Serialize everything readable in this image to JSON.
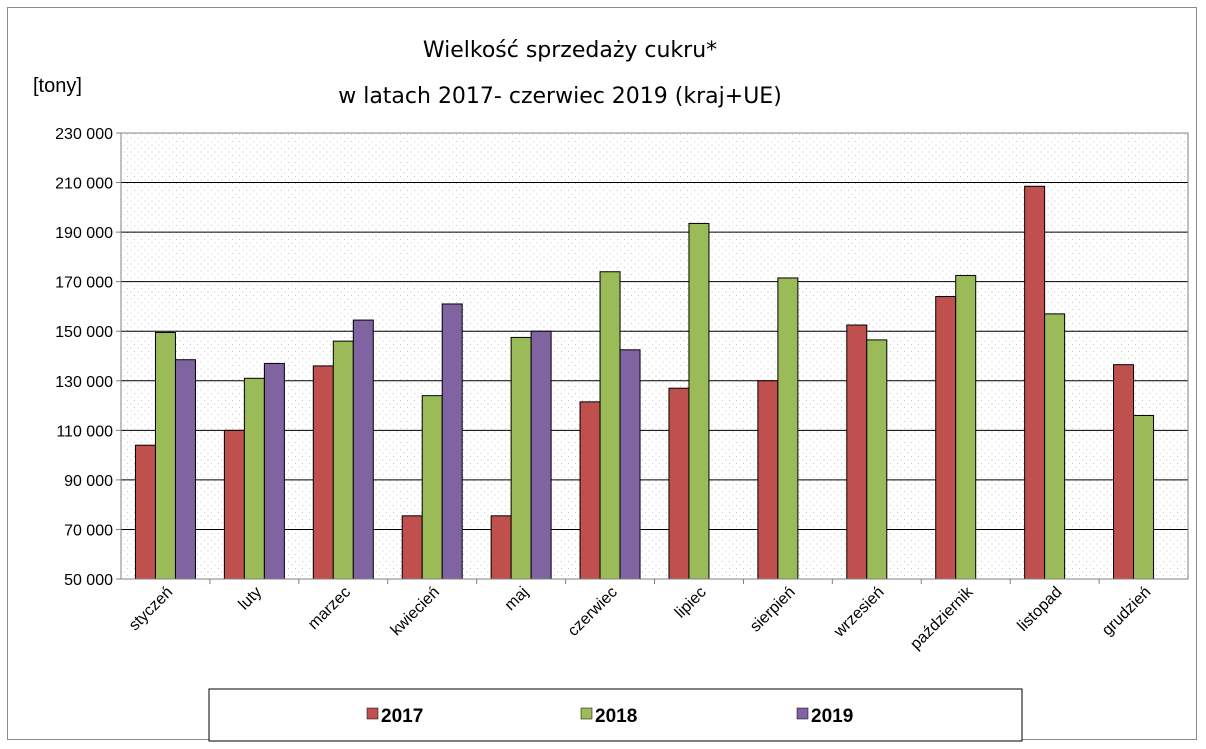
{
  "chart_data": {
    "type": "bar",
    "title_line1": "Wielkość sprzedaży cukru*",
    "title_line2": "w latach 2017- czerwiec 2019 (kraj+UE)",
    "ylabel": "[tony]",
    "xlabel": "",
    "ylim": [
      50000,
      230000
    ],
    "yticks": [
      50000,
      70000,
      90000,
      110000,
      130000,
      150000,
      170000,
      190000,
      210000,
      230000
    ],
    "ytick_labels": [
      "50 000",
      "70 000",
      "90 000",
      "110 000",
      "130 000",
      "150 000",
      "170 000",
      "190 000",
      "210 000",
      "230 000"
    ],
    "grid": true,
    "legend_position": "bottom",
    "categories": [
      "styczeń",
      "luty",
      "marzec",
      "kwiecień",
      "maj",
      "czerwiec",
      "lipiec",
      "sierpień",
      "wrzesień",
      "październik",
      "listopad",
      "grudzień"
    ],
    "series": [
      {
        "name": "2017",
        "color": "#c0504d",
        "values": [
          104000,
          110000,
          136000,
          75500,
          75500,
          121500,
          127000,
          130000,
          152500,
          164000,
          208500,
          136500
        ]
      },
      {
        "name": "2018",
        "color": "#9bbb59",
        "values": [
          149500,
          131000,
          146000,
          124000,
          147500,
          174000,
          193500,
          171500,
          146500,
          172500,
          157000,
          116000
        ]
      },
      {
        "name": "2019",
        "color": "#8064a2",
        "values": [
          138500,
          137000,
          154500,
          161000,
          150000,
          142500,
          null,
          null,
          null,
          null,
          null,
          null
        ]
      }
    ]
  }
}
